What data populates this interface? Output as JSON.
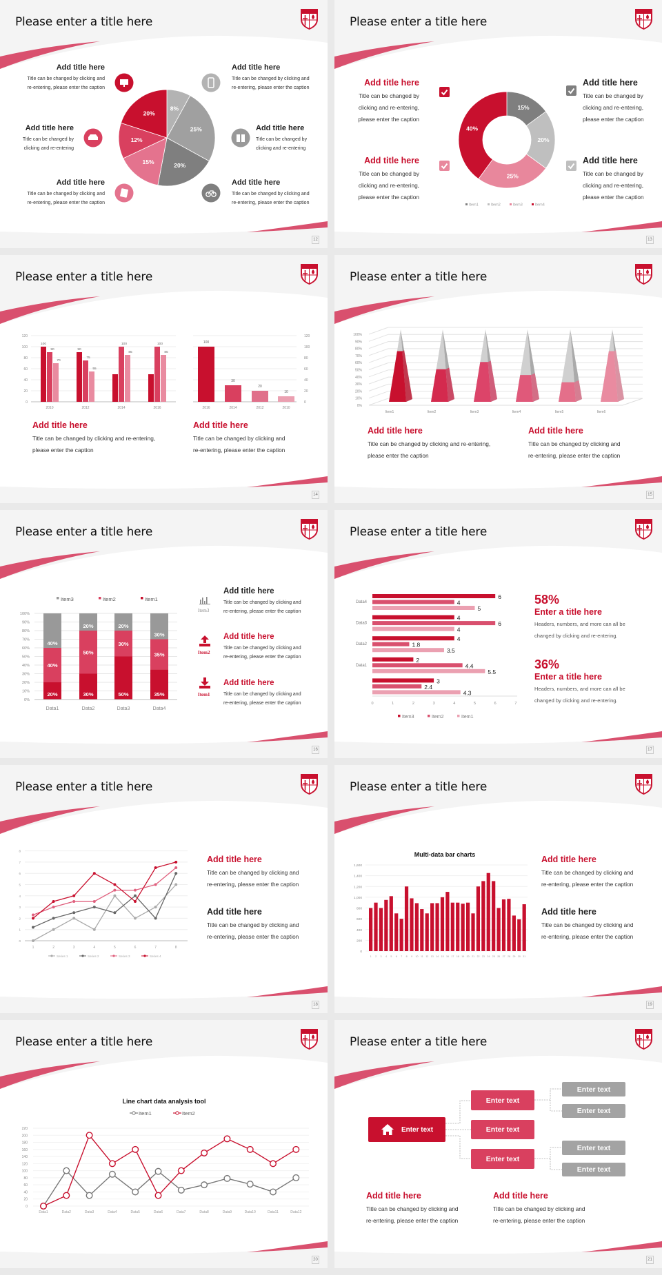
{
  "colors": {
    "red": "#c8102e",
    "rose": "#d9405f",
    "pink": "#e4738e",
    "light_pink": "#eba0b1",
    "gray": "#a0a0a0",
    "dark_gray": "#7f7f7f",
    "light_gray": "#bfbfbf"
  },
  "slide_title": "Please enter a title here",
  "slides": [
    {
      "page": "12",
      "blocks": [
        {
          "title": "Add title here",
          "lines": [
            "Title can be changed by clicking and",
            "re-entering, please enter the caption"
          ],
          "icon": "monitor-icon"
        },
        {
          "title": "Add title here",
          "lines": [
            "Title can be changed by",
            "clicking and re-entering"
          ],
          "icon": "car-icon"
        },
        {
          "title": "Add title here",
          "lines": [
            "Title can be changed by clicking and",
            "re-entering, please enter the caption"
          ],
          "icon": "book-icon"
        },
        {
          "title": "Add title here",
          "lines": [
            "Title can be changed by clicking and",
            "re-entering, please enter the caption"
          ],
          "icon": "phone-icon"
        },
        {
          "title": "Add title here",
          "lines": [
            "Title can be changed by",
            "clicking and re-entering"
          ],
          "icon": "binoculars-icon"
        },
        {
          "title": "Add title here",
          "lines": [
            "Title can be changed by clicking and",
            "re-entering, please enter the caption"
          ],
          "icon": "bicycle-icon"
        }
      ]
    },
    {
      "page": "13",
      "blocks": [
        {
          "title": "Add title here",
          "lines": [
            "Title can be changed by",
            "clicking and re-entering,",
            "please enter the caption"
          ]
        },
        {
          "title": "Add title here",
          "lines": [
            "Title can be changed by",
            "clicking and re-entering,",
            "please enter the caption"
          ]
        },
        {
          "title": "Add title here",
          "lines": [
            "Title can be changed by",
            "clicking and re-entering,",
            "please enter the caption"
          ]
        },
        {
          "title": "Add title here",
          "lines": [
            "Title can be changed by",
            "clicking and re-entering,",
            "please enter the caption"
          ]
        }
      ]
    },
    {
      "page": "14",
      "blocks": [
        {
          "title": "Add title here",
          "lines": [
            "Title can be changed by clicking and re-entering,",
            "please enter the caption"
          ]
        },
        {
          "title": "Add title here",
          "lines": [
            "Title can be changed by clicking and",
            "re-entering, please enter the caption"
          ]
        }
      ]
    },
    {
      "page": "15",
      "blocks": [
        {
          "title": "Add title here",
          "lines": [
            "Title can be changed by clicking and re-entering,",
            "please enter the caption"
          ]
        },
        {
          "title": "Add title here",
          "lines": [
            "Title can be changed by clicking and",
            "re-entering, please enter the caption"
          ]
        }
      ]
    },
    {
      "page": "16",
      "blocks": [
        {
          "title": "Add title here",
          "lines": [
            "Title can be changed by clicking and",
            "re-entering, please enter the caption"
          ],
          "icon_label": "Item3",
          "icon": "bar-chart-icon"
        },
        {
          "title": "Add title here",
          "lines": [
            "Title can be changed by clicking and",
            "re-entering, please enter the caption"
          ],
          "icon_label": "Item2",
          "icon": "upload-icon"
        },
        {
          "title": "Add title here",
          "lines": [
            "Title can be changed by clicking and",
            "re-entering, please enter the caption"
          ],
          "icon_label": "Item1",
          "icon": "download-icon"
        }
      ]
    },
    {
      "page": "17",
      "stats": [
        {
          "value": "58%",
          "title": "Enter a title here",
          "lines": [
            "Headers, numbers, and more can all be",
            "changed by clicking and re-entering."
          ]
        },
        {
          "value": "36%",
          "title": "Enter a title here",
          "lines": [
            "Headers, numbers, and more can all be",
            "changed by clicking and re-entering."
          ]
        }
      ]
    },
    {
      "page": "18",
      "blocks": [
        {
          "title": "Add title here",
          "lines": [
            "Title can be changed by clicking and",
            "re-entering, please enter the caption"
          ]
        },
        {
          "title": "Add title here",
          "lines": [
            "Title can be changed by clicking and",
            "re-entering, please enter the caption"
          ]
        }
      ]
    },
    {
      "page": "19",
      "blocks": [
        {
          "title": "Add title here",
          "lines": [
            "Title can be changed by clicking and",
            "re-entering, please enter the caption"
          ]
        },
        {
          "title": "Add title here",
          "lines": [
            "Title can be changed by clicking and",
            "re-entering, please enter the caption"
          ]
        }
      ]
    },
    {
      "page": "20"
    },
    {
      "page": "21",
      "diagram": {
        "root": "Enter text",
        "mid": [
          "Enter text",
          "Enter text",
          "Enter text"
        ],
        "leaves": [
          "Enter text",
          "Enter text",
          "Enter text",
          "Enter text"
        ]
      },
      "blocks": [
        {
          "title": "Add title here",
          "lines": [
            "Title can be changed by clicking and",
            "re-entering, please enter the caption"
          ]
        },
        {
          "title": "Add title here",
          "lines": [
            "Title can be changed by clicking and",
            "re-entering, please enter the caption"
          ]
        }
      ]
    }
  ],
  "chart_data": [
    {
      "type": "pie",
      "values": [
        8,
        25,
        20,
        15,
        12,
        20
      ],
      "labels": [
        "8%",
        "25%",
        "20%",
        "15%",
        "12%",
        "20%"
      ],
      "colors": [
        "#b3b3b3",
        "#a0a0a0",
        "#7f7f7f",
        "#e4738e",
        "#d9405f",
        "#c8102e"
      ]
    },
    {
      "type": "pie",
      "donut": true,
      "categories": [
        "Item1",
        "Item2",
        "Item3",
        "Item4"
      ],
      "values": [
        15,
        20,
        25,
        40
      ],
      "labels": [
        "15%",
        "20%",
        "25%",
        "40%"
      ],
      "colors": [
        "#7f7f7f",
        "#bfbfbf",
        "#e8879c",
        "#c8102e"
      ],
      "legend": "bottom"
    },
    {
      "type": "bar",
      "categories": [
        "2010",
        "2012",
        "2014",
        "2016"
      ],
      "series": [
        {
          "values": [
            100,
            90,
            50,
            50
          ],
          "labels": [
            "100",
            "90",
            null,
            null
          ]
        },
        {
          "values": [
            90,
            75,
            100,
            100
          ],
          "labels": [
            "90",
            "75",
            "100",
            "100"
          ]
        },
        {
          "values": [
            70,
            55,
            85,
            85
          ],
          "labels": [
            "70",
            "55",
            "85",
            "85"
          ]
        }
      ],
      "ylim": [
        0,
        120
      ],
      "yticks": [
        0,
        20,
        40,
        60,
        80,
        100,
        120
      ],
      "colors": [
        "#c8102e",
        "#d9405f",
        "#e98ba0"
      ],
      "grid": true
    },
    {
      "type": "bar",
      "categories": [
        "2016",
        "2014",
        "2012",
        "2010"
      ],
      "values": [
        100,
        30,
        20,
        10
      ],
      "ylim": [
        0,
        120
      ],
      "yticks": [
        0,
        20,
        40,
        60,
        80,
        100,
        120
      ],
      "axis": "right",
      "colors": [
        "#c8102e",
        "#d9405f",
        "#e0708a",
        "#eba0b1"
      ],
      "grid": true
    },
    {
      "type": "bar",
      "style": "3d-pyramid",
      "categories": [
        "Item1",
        "Item2",
        "Item3",
        "Item4",
        "Item5",
        "Item6"
      ],
      "values": [
        70,
        45,
        55,
        37,
        27,
        70
      ],
      "ylim": [
        0,
        100
      ],
      "yticks": [
        "0%",
        "10%",
        "20%",
        "30%",
        "40%",
        "50%",
        "60%",
        "70%",
        "80%",
        "90%",
        "100%"
      ],
      "colors": [
        "#c8102e",
        "#d42a4e",
        "#dc4469",
        "#e0597a",
        "#e46f8a",
        "#e98ba0"
      ],
      "grid": true
    },
    {
      "type": "bar",
      "stacked": "percent",
      "categories": [
        "Data1",
        "Data2",
        "Data3",
        "Data4"
      ],
      "series": [
        {
          "name": "Item1",
          "values": [
            20,
            30,
            50,
            35
          ],
          "color": "#c8102e"
        },
        {
          "name": "Item2",
          "values": [
            40,
            50,
            30,
            35
          ],
          "color": "#d9405f"
        },
        {
          "name": "Item3",
          "values": [
            40,
            20,
            20,
            30
          ],
          "color": "#999999"
        }
      ],
      "ylim": [
        0,
        100
      ],
      "yticks": [
        "0%",
        "10%",
        "20%",
        "30%",
        "40%",
        "50%",
        "60%",
        "70%",
        "80%",
        "90%",
        "100%"
      ],
      "legend": "top",
      "legend_order": [
        "Item3",
        "Item2",
        "Item1"
      ],
      "grid": true
    },
    {
      "type": "bar",
      "orientation": "horizontal",
      "groups": [
        {
          "label": "Data4",
          "values": [
            6,
            4,
            5
          ]
        },
        {
          "label": "Data3",
          "values": [
            4,
            6,
            4
          ]
        },
        {
          "label": "Data2",
          "values": [
            4,
            1.8,
            3.5
          ]
        },
        {
          "label": "Data1",
          "values": [
            2,
            4.4,
            5.5
          ]
        },
        {
          "label": "",
          "values": [
            3,
            2.4,
            4.3
          ]
        }
      ],
      "series": [
        {
          "name": "Item3",
          "color": "#c8102e"
        },
        {
          "name": "Item2",
          "color": "#d9506e"
        },
        {
          "name": "Item1",
          "color": "#eba0b1"
        }
      ],
      "xlim": [
        0,
        7
      ],
      "xticks": [
        0,
        1,
        2,
        3,
        4,
        5,
        6,
        7
      ],
      "legend": "bottom"
    },
    {
      "type": "line",
      "x": [
        1,
        2,
        3,
        4,
        5,
        6,
        7,
        8
      ],
      "series": [
        {
          "name": "Series 1",
          "values": [
            0,
            1,
            2,
            1,
            4,
            2,
            3,
            5
          ],
          "color": "#aaaaaa"
        },
        {
          "name": "Series 2",
          "values": [
            1.2,
            2,
            2.5,
            3,
            2.5,
            4,
            2,
            6
          ],
          "color": "#666666"
        },
        {
          "name": "Series 3",
          "values": [
            2.3,
            3,
            3.5,
            3.5,
            4.5,
            4.5,
            5,
            6.5
          ],
          "color": "#e0607e"
        },
        {
          "name": "Series 4",
          "values": [
            2,
            3.5,
            4,
            6,
            5,
            3.5,
            6.5,
            7
          ],
          "color": "#c8102e"
        }
      ],
      "ylim": [
        0,
        8
      ],
      "yticks": [
        0,
        1,
        2,
        3,
        4,
        5,
        6,
        7,
        8
      ],
      "legend": "bottom",
      "grid": true
    },
    {
      "type": "bar",
      "title": "Multi-data bar charts",
      "categories": [
        "1",
        "2",
        "3",
        "4",
        "5",
        "6",
        "7",
        "8",
        "9",
        "10",
        "11",
        "12",
        "13",
        "14",
        "15",
        "16",
        "17",
        "18",
        "19",
        "20",
        "21",
        "22",
        "23",
        "24",
        "25",
        "26",
        "27",
        "28",
        "29",
        "30",
        "31"
      ],
      "values": [
        800,
        900,
        800,
        950,
        1020,
        700,
        600,
        1200,
        980,
        890,
        780,
        700,
        890,
        890,
        1000,
        1100,
        900,
        900,
        880,
        900,
        700,
        1200,
        1300,
        1450,
        1300,
        800,
        960,
        970,
        660,
        590,
        870
      ],
      "ylim": [
        0,
        1600
      ],
      "yticks": [
        "0",
        "200",
        "400",
        "600",
        "800",
        "1,000",
        "1,200",
        "1,400",
        "1,600"
      ],
      "color": "#c8102e",
      "grid": true
    },
    {
      "type": "line",
      "title": "Line chart data analysis tool",
      "categories": [
        "Data1",
        "Data2",
        "Data3",
        "Data4",
        "Data5",
        "Data6",
        "Data7",
        "Data8",
        "Data9",
        "Data10",
        "Data11",
        "Data12"
      ],
      "series": [
        {
          "name": "Item1",
          "values": [
            0,
            100,
            30,
            90,
            40,
            98,
            45,
            60,
            78,
            62,
            40,
            80
          ],
          "color": "#777777"
        },
        {
          "name": "Item2",
          "values": [
            0,
            30,
            200,
            120,
            160,
            30,
            100,
            150,
            190,
            160,
            120,
            160
          ],
          "color": "#c8102e"
        }
      ],
      "ylim": [
        0,
        220
      ],
      "yticks": [
        0,
        20,
        40,
        60,
        80,
        100,
        120,
        140,
        160,
        180,
        200,
        220
      ],
      "legend": "top",
      "grid": true
    }
  ]
}
